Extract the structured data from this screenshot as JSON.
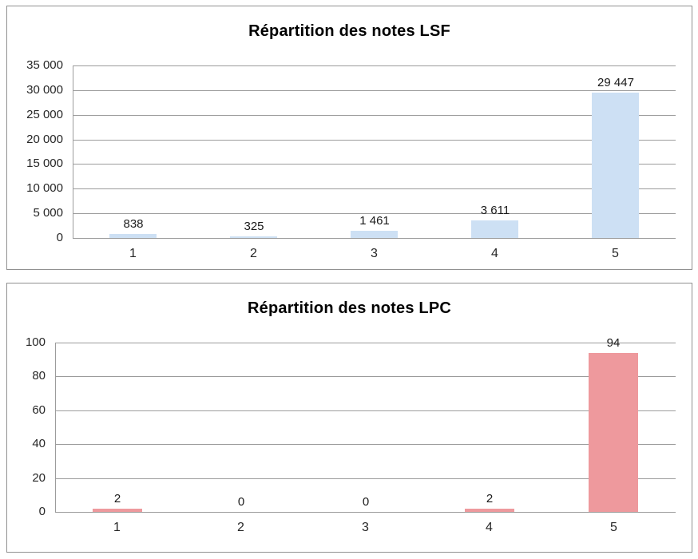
{
  "page": {
    "background": "#ffffff"
  },
  "style": {
    "panel_border_color": "#919191",
    "gridline_color": "#9c9c9c",
    "tick_label_color": "#262626",
    "value_label_color": "#1a1a1a",
    "title_color": "#000000"
  },
  "chart_data": [
    {
      "type": "bar",
      "title": "Répartition des notes LSF",
      "categories": [
        "1",
        "2",
        "3",
        "4",
        "5"
      ],
      "values": [
        838,
        325,
        1461,
        3611,
        29447
      ],
      "value_labels": [
        "838",
        "325",
        "1 461",
        "3 611",
        "29 447"
      ],
      "xlabel": "",
      "ylabel": "",
      "ylim": [
        0,
        35000
      ],
      "ytick_step": 5000,
      "ytick_labels": [
        "0",
        "5 000",
        "10 000",
        "15 000",
        "20 000",
        "25 000",
        "30 000",
        "35 000"
      ],
      "grid": true,
      "legend": "none",
      "bar_color": "#cde0f4"
    },
    {
      "type": "bar",
      "title": "Répartition des notes LPC",
      "categories": [
        "1",
        "2",
        "3",
        "4",
        "5"
      ],
      "values": [
        2,
        0,
        0,
        2,
        94
      ],
      "value_labels": [
        "2",
        "0",
        "0",
        "2",
        "94"
      ],
      "xlabel": "",
      "ylabel": "",
      "ylim": [
        0,
        100
      ],
      "ytick_step": 20,
      "ytick_labels": [
        "0",
        "20",
        "40",
        "60",
        "80",
        "100"
      ],
      "grid": true,
      "legend": "none",
      "bar_color": "#ee999d"
    }
  ]
}
